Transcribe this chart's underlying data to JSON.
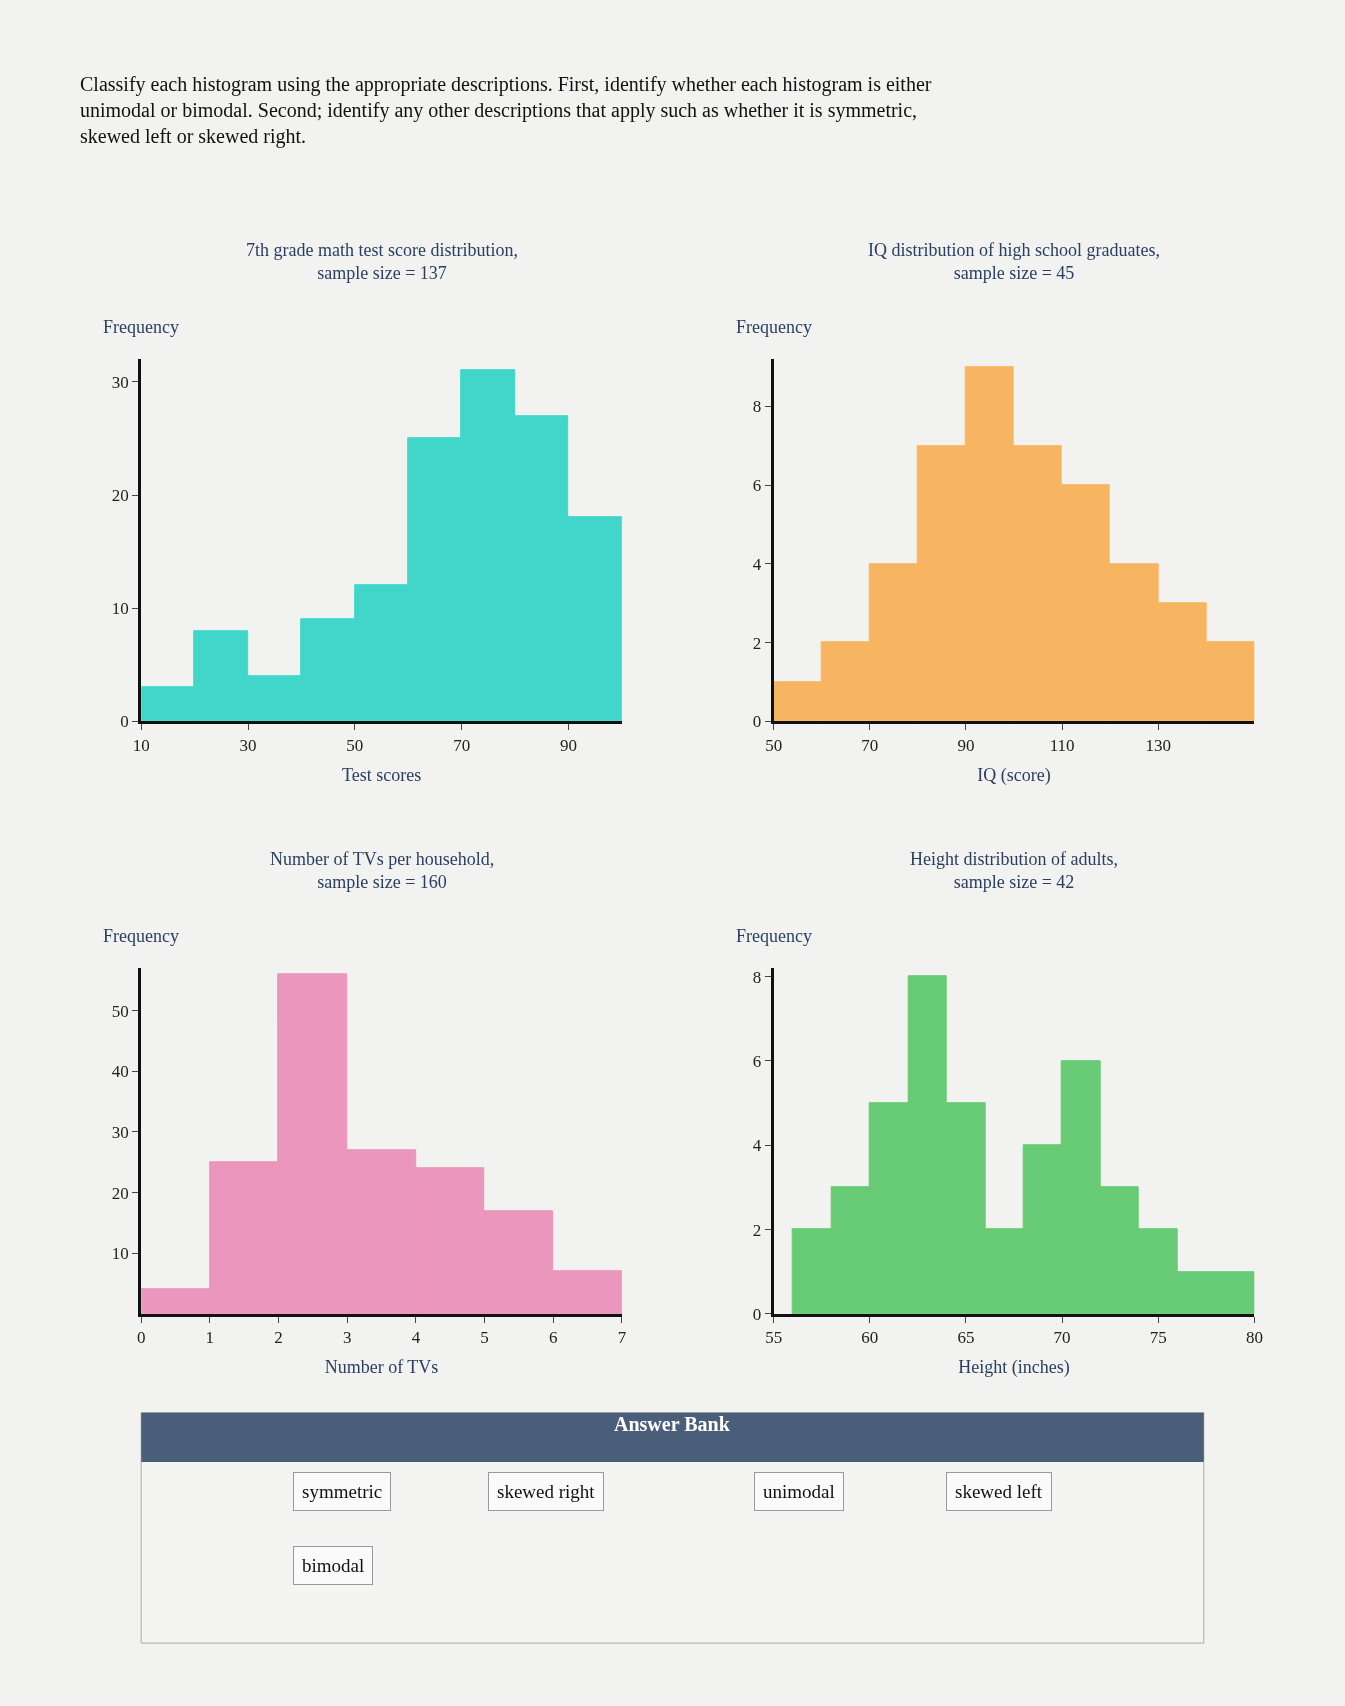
{
  "chart_data": [
    {
      "type": "other",
      "title": "Classify each histogram using the appropriate descriptions. First, identify whether each histogram is either unimodal or bimodal. Second; identify any other descriptions that apply such as whether it is symmetric, skewed left or skewed right."
    },
    {
      "type": "histogram",
      "title": "7th grade math test score distribution,",
      "subtitle": "sample size = 137",
      "xlabel": "Test scores",
      "ylabel": "Frequency",
      "bins": [
        10,
        20,
        30,
        40,
        50,
        60,
        70,
        80,
        90,
        100
      ],
      "values": [
        3,
        8,
        4,
        9,
        12,
        25,
        31,
        27,
        18
      ],
      "color": "#22d3c3",
      "xlim": [
        10,
        100
      ],
      "xticks": [
        10,
        30,
        50,
        70,
        90
      ],
      "ylim": [
        0,
        32
      ],
      "yticks": [
        0,
        10,
        20,
        30
      ],
      "grid": false
    },
    {
      "type": "histogram",
      "title": "IQ distribution of high school graduates,",
      "subtitle": "sample size = 45",
      "xlabel": "IQ (score)",
      "ylabel": "Frequency",
      "bins": [
        50,
        60,
        70,
        80,
        90,
        100,
        110,
        120,
        130,
        140,
        150
      ],
      "values": [
        1,
        2,
        4,
        7,
        9,
        7,
        6,
        4,
        3,
        2
      ],
      "color": "#f9ab48",
      "xlim": [
        50,
        150
      ],
      "xticks": [
        50,
        70,
        90,
        110,
        130
      ],
      "ylim": [
        0,
        9.2
      ],
      "yticks": [
        0,
        2,
        4,
        6,
        8
      ],
      "grid": false
    },
    {
      "type": "histogram",
      "title": "Number of TVs per household,",
      "subtitle": "sample size = 160",
      "xlabel": "Number of TVs",
      "ylabel": "Frequency",
      "bins": [
        0,
        1,
        2,
        3,
        4,
        5,
        6,
        7
      ],
      "values": [
        4,
        25,
        56,
        27,
        24,
        17,
        7
      ],
      "color": "#ea86b3",
      "xlim": [
        0,
        7
      ],
      "xticks": [
        0,
        1,
        2,
        3,
        4,
        5,
        6,
        7
      ],
      "ylim": [
        0,
        57
      ],
      "yticks": [
        10,
        20,
        30,
        40,
        50
      ],
      "grid": false
    },
    {
      "type": "histogram",
      "title": "Height distribution of adults,",
      "subtitle": "sample size = 42",
      "xlabel": "Height (inches)",
      "ylabel": "Frequency",
      "bins": [
        56,
        58,
        60,
        62,
        64,
        66,
        68,
        70,
        72,
        74,
        76,
        78,
        80
      ],
      "values": [
        2,
        3,
        5,
        8,
        5,
        2,
        4,
        6,
        3,
        2,
        1,
        1
      ],
      "color": "#4fc45e",
      "xlim": [
        55,
        80
      ],
      "xticks": [
        55,
        60,
        65,
        70,
        75,
        80
      ],
      "ylim": [
        0,
        8.2
      ],
      "yticks": [
        0,
        2,
        4,
        6,
        8
      ],
      "grid": false
    },
    {
      "type": "other",
      "title": "Answer Bank",
      "annotations": [
        "symmetric",
        "skewed right",
        "unimodal",
        "skewed left",
        "bimodal"
      ]
    }
  ]
}
